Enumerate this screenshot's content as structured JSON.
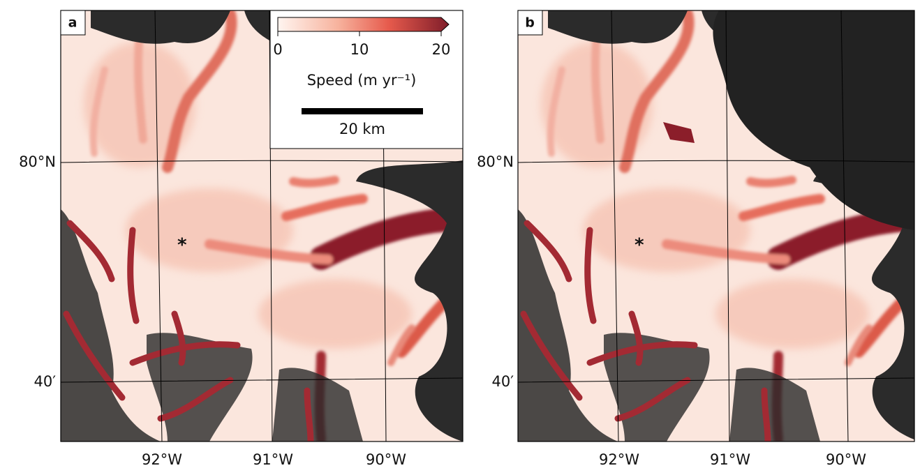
{
  "panels": [
    {
      "label": "a"
    },
    {
      "label": "b"
    }
  ],
  "colorbar": {
    "label": "Speed (m yr⁻¹)",
    "lim": [
      0,
      20
    ],
    "ticks": [
      0,
      10,
      20
    ]
  },
  "scale_bar": "20 km",
  "lat_labels": [
    "80°N",
    "40′"
  ],
  "lon_labels": [
    "92°W",
    "91°W",
    "90°W"
  ]
}
